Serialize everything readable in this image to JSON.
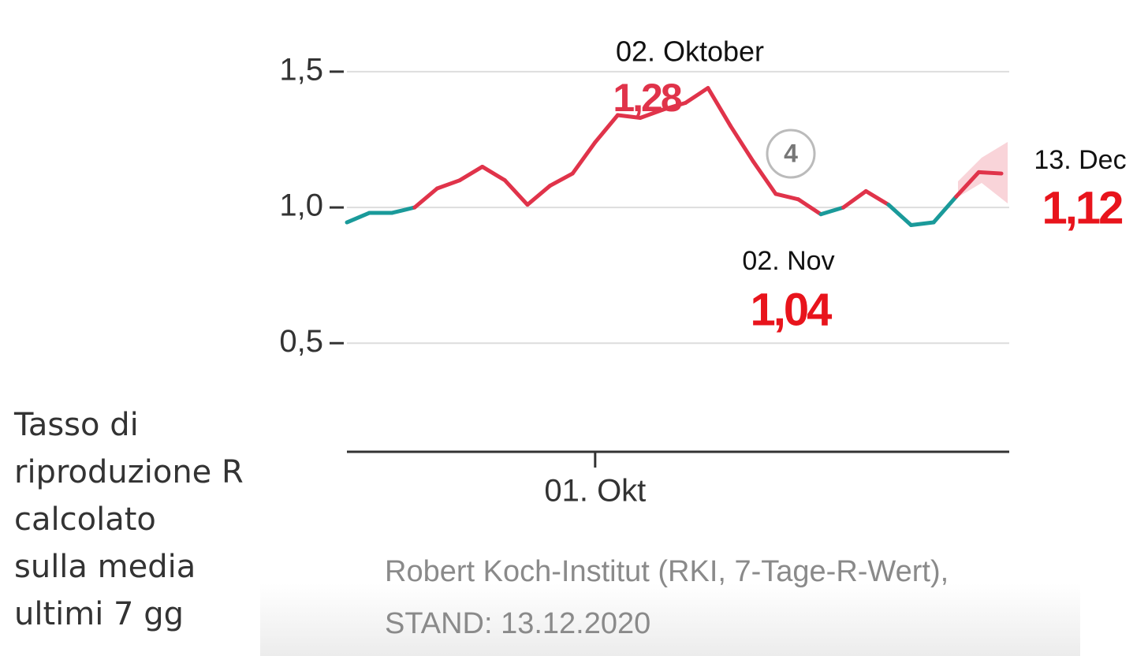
{
  "chart_data": {
    "type": "line",
    "categories": [
      null,
      null,
      null,
      null,
      null,
      null,
      null,
      null,
      null,
      null,
      null,
      "01. Okt",
      null,
      null,
      null,
      null,
      null,
      null,
      null,
      null,
      null,
      null,
      null,
      null,
      null,
      null,
      null,
      null,
      null,
      null
    ],
    "series": [
      {
        "color": "#e0334a",
        "below_color": "#1a9a9a",
        "color_threshold": 1,
        "values": [
          0.945,
          0.98,
          0.98,
          1.0,
          1.07,
          1.1,
          1.15,
          1.1,
          1.01,
          1.08,
          1.125,
          1.24,
          1.34,
          1.33,
          1.36,
          1.385,
          1.44,
          1.3,
          1.17,
          1.05,
          1.03,
          0.975,
          1.0,
          1.06,
          1.01,
          0.935,
          0.945,
          1.04,
          1.13,
          1.125
        ]
      }
    ],
    "ylim": [
      0.1,
      1.6
    ],
    "yticks": [
      {
        "value": 0.5,
        "label": "0,5"
      },
      {
        "value": 1.0,
        "label": "1,0"
      },
      {
        "value": 1.5,
        "label": "1,5"
      }
    ],
    "grid": true,
    "annotations": [
      {
        "date": "02. Oktober",
        "label": "1,28"
      },
      {
        "date": "02. Nov",
        "label": "1,04"
      },
      {
        "date": "13. Dec",
        "label": "1,12"
      }
    ],
    "marker": "4",
    "caption": [
      "Tasso di",
      "riproduzione R",
      "calcolato",
      "sulla media",
      "ultimi 7 gg"
    ],
    "source": [
      "Robert Koch-Institut (RKI, 7-Tage-R-Wert),",
      "STAND: 13.12.2020"
    ]
  }
}
